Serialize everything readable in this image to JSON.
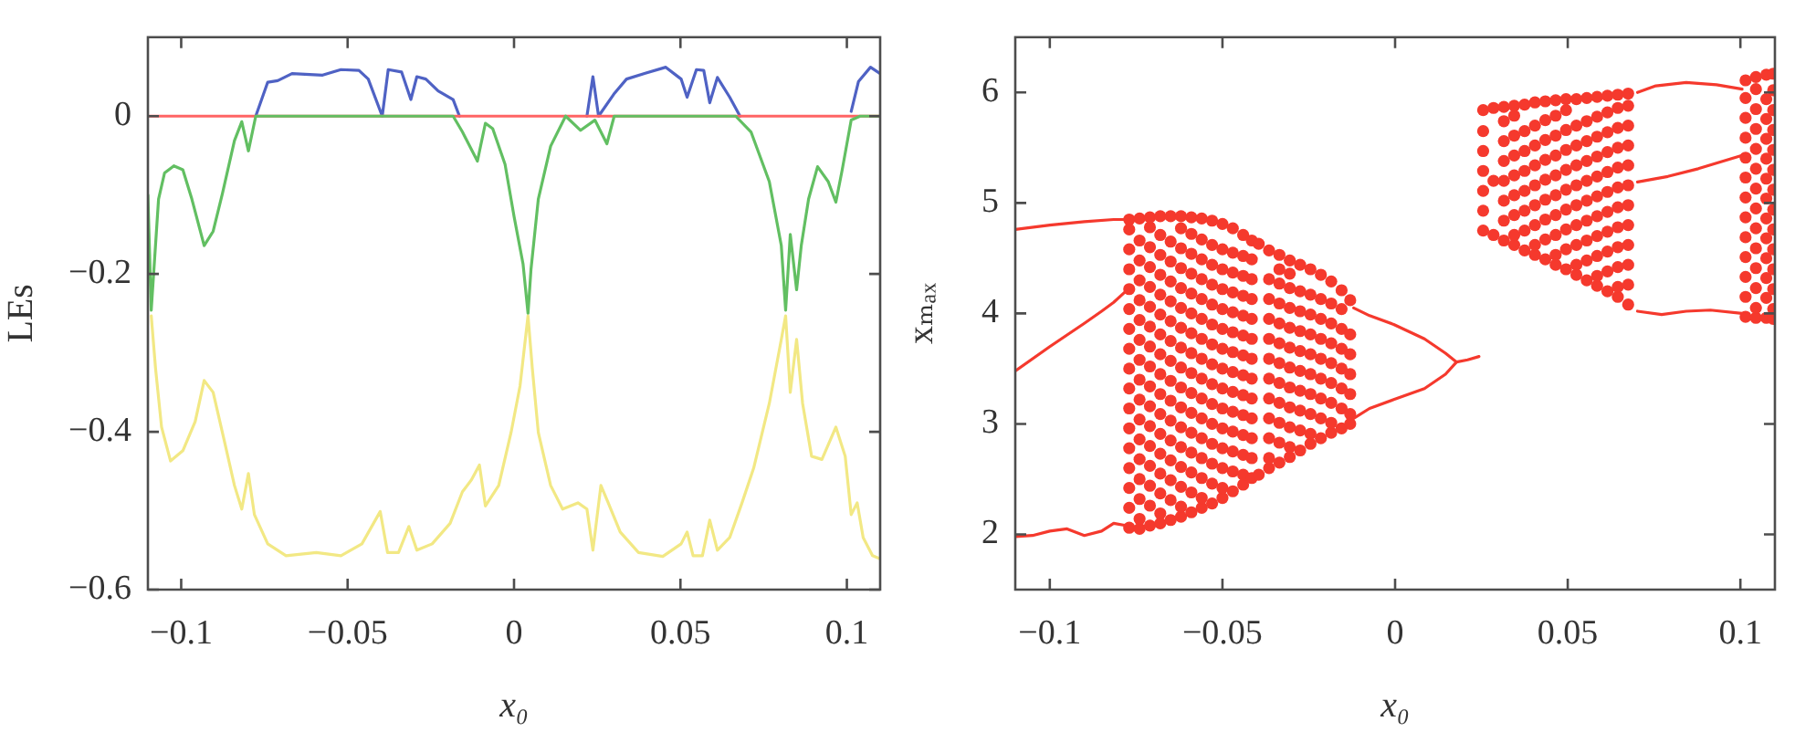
{
  "chart_data": [
    {
      "type": "line",
      "xlabel": "x₀",
      "ylabel": "LEs",
      "xlim": [
        -0.11,
        0.11
      ],
      "ylim": [
        -0.6,
        0.1
      ],
      "xticks": [
        -0.1,
        -0.05,
        0,
        0.05,
        0.1
      ],
      "yticks": [
        -0.6,
        -0.4,
        -0.2,
        0
      ],
      "marker": "none",
      "series": [
        {
          "color": "#4f62c4",
          "x": [
            -0.0776,
            -0.074,
            -0.071,
            -0.0667,
            -0.0575,
            -0.052,
            -0.0466,
            -0.0438,
            -0.0396,
            -0.0378,
            -0.0338,
            -0.031,
            -0.0292,
            -0.0265,
            -0.0228,
            -0.0183,
            -0.0164,
            0,
            0.0219,
            0.0237,
            0.0254,
            0.03,
            0.0338,
            0.0392,
            0.0456,
            0.0502,
            0.052,
            0.0548,
            0.057,
            0.0588,
            0.0611,
            0.0648,
            0.0679,
            0.085,
            0.1013,
            0.1035,
            0.1071,
            0.11
          ],
          "values": [
            0,
            0.043,
            0.045,
            0.054,
            0.052,
            0.059,
            0.058,
            0.047,
            0,
            0.059,
            0.056,
            0.021,
            0.05,
            0.047,
            0.032,
            0.021,
            0,
            null,
            0,
            0.05,
            0,
            0.028,
            0.047,
            0.054,
            0.062,
            0.047,
            0.024,
            0.059,
            0.058,
            0.017,
            0.049,
            0.024,
            0,
            null,
            0.006,
            0.044,
            0.062,
            0.054
          ]
        },
        {
          "color": "#ff6464",
          "x": [
            -0.11,
            0.11
          ],
          "values": [
            0,
            0
          ]
        },
        {
          "color": "#62bf62",
          "x": [
            -0.11,
            -0.109,
            -0.1068,
            -0.105,
            -0.1022,
            -0.0995,
            -0.0968,
            -0.0931,
            -0.0904,
            -0.0876,
            -0.084,
            -0.0818,
            -0.0798,
            -0.0776,
            -0.0183,
            -0.0155,
            -0.011,
            -0.0086,
            -0.0064,
            -0.0027,
            0,
            0.0027,
            0.0042,
            0.0051,
            0.0073,
            0.011,
            0.0155,
            0.02,
            0.0243,
            0.0279,
            0.0301,
            0.0666,
            0.0712,
            0.0767,
            0.0803,
            0.0816,
            0.083,
            0.0849,
            0.0863,
            0.0885,
            0.0912,
            0.0944,
            0.0967,
            0.0986,
            0.1013,
            0.104,
            0.11
          ],
          "values": [
            -0.1,
            -0.246,
            -0.105,
            -0.072,
            -0.063,
            -0.068,
            -0.105,
            -0.164,
            -0.146,
            -0.098,
            -0.031,
            -0.007,
            -0.044,
            0,
            0,
            -0.02,
            -0.057,
            -0.009,
            -0.016,
            -0.061,
            -0.127,
            -0.187,
            -0.25,
            -0.194,
            -0.105,
            -0.038,
            0,
            -0.018,
            -0.005,
            -0.035,
            0,
            0,
            -0.02,
            -0.083,
            -0.164,
            -0.246,
            -0.15,
            -0.22,
            -0.164,
            -0.105,
            -0.064,
            -0.083,
            -0.109,
            -0.068,
            -0.005,
            0,
            0
          ]
        },
        {
          "color": "#f2e884",
          "x": [
            -0.109,
            -0.1077,
            -0.1059,
            -0.1032,
            -0.0995,
            -0.0958,
            -0.0931,
            -0.0904,
            -0.0868,
            -0.084,
            -0.0818,
            -0.0798,
            -0.078,
            -0.074,
            -0.0685,
            -0.0594,
            -0.052,
            -0.0457,
            -0.0402,
            -0.038,
            -0.0347,
            -0.0316,
            -0.0292,
            -0.0246,
            -0.0192,
            -0.0155,
            -0.0128,
            -0.0104,
            -0.0086,
            -0.0046,
            -0.0009,
            0.0018,
            0.0042,
            0.0055,
            0.0073,
            0.011,
            0.0146,
            0.0192,
            0.0219,
            0.0237,
            0.0261,
            0.0283,
            0.0319,
            0.0374,
            0.0447,
            0.0502,
            0.052,
            0.0538,
            0.0566,
            0.0588,
            0.0611,
            0.0648,
            0.0685,
            0.072,
            0.0767,
            0.0803,
            0.0816,
            0.083,
            0.0849,
            0.0867,
            0.0894,
            0.0925,
            0.0967,
            0.0995,
            0.1013,
            0.1031,
            0.1049,
            0.1077,
            0.11
          ],
          "values": [
            -0.253,
            -0.32,
            -0.394,
            -0.437,
            -0.424,
            -0.387,
            -0.335,
            -0.35,
            -0.416,
            -0.468,
            -0.498,
            -0.453,
            -0.505,
            -0.542,
            -0.557,
            -0.553,
            -0.557,
            -0.542,
            -0.501,
            -0.553,
            -0.553,
            -0.52,
            -0.55,
            -0.542,
            -0.516,
            -0.476,
            -0.461,
            -0.442,
            -0.494,
            -0.468,
            -0.401,
            -0.342,
            -0.253,
            -0.32,
            -0.401,
            -0.468,
            -0.498,
            -0.49,
            -0.498,
            -0.55,
            -0.468,
            -0.49,
            -0.527,
            -0.553,
            -0.558,
            -0.542,
            -0.527,
            -0.557,
            -0.557,
            -0.512,
            -0.55,
            -0.534,
            -0.49,
            -0.446,
            -0.364,
            -0.283,
            -0.253,
            -0.35,
            -0.283,
            -0.364,
            -0.431,
            -0.435,
            -0.394,
            -0.431,
            -0.505,
            -0.49,
            -0.534,
            -0.557,
            -0.561
          ]
        }
      ]
    },
    {
      "type": "scatter",
      "xlabel": "x₀",
      "ylabel": "xₘₐₓ",
      "xlim": [
        -0.11,
        0.11
      ],
      "ylim": [
        1.5,
        6.5
      ],
      "xticks": [
        -0.1,
        -0.05,
        0,
        0.05,
        0.1
      ],
      "yticks": [
        2,
        3,
        4,
        5,
        6
      ],
      "marker": "circle",
      "series": [
        {
          "color": "#f5392d",
          "x": [
            -0.077,
            -0.077,
            -0.077,
            -0.077,
            -0.077,
            -0.077,
            -0.077,
            -0.077,
            -0.077,
            -0.077,
            -0.077,
            -0.077,
            -0.077,
            -0.077,
            -0.077,
            -0.077,
            -0.077,
            -0.074,
            -0.074,
            -0.074,
            -0.074,
            -0.074,
            -0.074,
            -0.074,
            -0.074,
            -0.074,
            -0.074,
            -0.074,
            -0.074,
            -0.074,
            -0.074,
            -0.074,
            -0.074,
            -0.074,
            -0.071,
            -0.071,
            -0.071,
            -0.071,
            -0.071,
            -0.071,
            -0.071,
            -0.071,
            -0.071,
            -0.071,
            -0.071,
            -0.071,
            -0.071,
            -0.071,
            -0.071,
            -0.071,
            -0.071,
            -0.068,
            -0.068,
            -0.068,
            -0.068,
            -0.068,
            -0.068,
            -0.068,
            -0.068,
            -0.068,
            -0.068,
            -0.068,
            -0.068,
            -0.068,
            -0.068,
            -0.068,
            -0.068,
            -0.068,
            -0.065,
            -0.065,
            -0.065,
            -0.065,
            -0.065,
            -0.065,
            -0.065,
            -0.065,
            -0.065,
            -0.065,
            -0.065,
            -0.065,
            -0.065,
            -0.065,
            -0.065,
            -0.065,
            -0.062,
            -0.062,
            -0.062,
            -0.062,
            -0.062,
            -0.062,
            -0.062,
            -0.062,
            -0.062,
            -0.062,
            -0.062,
            -0.062,
            -0.062,
            -0.062,
            -0.062,
            -0.062,
            -0.062,
            -0.059,
            -0.059,
            -0.059,
            -0.059,
            -0.059,
            -0.059,
            -0.059,
            -0.059,
            -0.059,
            -0.059,
            -0.059,
            -0.059,
            -0.059,
            -0.059,
            -0.059,
            -0.059,
            -0.056,
            -0.056,
            -0.056,
            -0.056,
            -0.056,
            -0.056,
            -0.056,
            -0.056,
            -0.056,
            -0.056,
            -0.056,
            -0.056,
            -0.056,
            -0.056,
            -0.056,
            -0.056,
            -0.053,
            -0.053,
            -0.053,
            -0.053,
            -0.053,
            -0.053,
            -0.053,
            -0.053,
            -0.053,
            -0.053,
            -0.053,
            -0.053,
            -0.053,
            -0.053,
            -0.053,
            -0.05,
            -0.05,
            -0.05,
            -0.05,
            -0.05,
            -0.05,
            -0.05,
            -0.05,
            -0.05,
            -0.05,
            -0.05,
            -0.05,
            -0.05,
            -0.05,
            -0.05,
            -0.047,
            -0.047,
            -0.047,
            -0.047,
            -0.047,
            -0.047,
            -0.047,
            -0.047,
            -0.047,
            -0.047,
            -0.047,
            -0.047,
            -0.047,
            -0.047,
            -0.044,
            -0.044,
            -0.044,
            -0.044,
            -0.044,
            -0.044,
            -0.044,
            -0.044,
            -0.044,
            -0.044,
            -0.044,
            -0.044,
            -0.044,
            -0.044,
            -0.0415,
            -0.0415,
            -0.0415,
            -0.0415,
            -0.0415,
            -0.0415,
            -0.0415,
            -0.0415,
            -0.0415,
            -0.0415,
            -0.0415,
            -0.0415,
            -0.0415,
            -0.0395,
            -0.0395,
            -0.0365,
            -0.0365,
            -0.0365,
            -0.0365,
            -0.0365,
            -0.0365,
            -0.0365,
            -0.0365,
            -0.0365,
            -0.0365,
            -0.0365,
            -0.0365,
            -0.0335,
            -0.0335,
            -0.0335,
            -0.0335,
            -0.0335,
            -0.0335,
            -0.0335,
            -0.0335,
            -0.0335,
            -0.0335,
            -0.0335,
            -0.0335,
            -0.0305,
            -0.0305,
            -0.0305,
            -0.0305,
            -0.0305,
            -0.0305,
            -0.0305,
            -0.0305,
            -0.0305,
            -0.0305,
            -0.0305,
            -0.0305,
            -0.0275,
            -0.0275,
            -0.0275,
            -0.0275,
            -0.0275,
            -0.0275,
            -0.0275,
            -0.0275,
            -0.0275,
            -0.0275,
            -0.0245,
            -0.0245,
            -0.0245,
            -0.0245,
            -0.0245,
            -0.0245,
            -0.0245,
            -0.0245,
            -0.0245,
            -0.0245,
            -0.0215,
            -0.0215,
            -0.0215,
            -0.0215,
            -0.0215,
            -0.0215,
            -0.0215,
            -0.0215,
            -0.0215,
            -0.0185,
            -0.0185,
            -0.0185,
            -0.0185,
            -0.0185,
            -0.0185,
            -0.0185,
            -0.0185,
            -0.0185,
            -0.0155,
            -0.0155,
            -0.0155,
            -0.0155,
            -0.0155,
            -0.0155,
            -0.0155,
            -0.0155,
            -0.013,
            -0.013,
            -0.013,
            -0.013,
            -0.013,
            -0.013,
            -0.013
          ],
          "values": [
            2.06,
            2.24,
            2.42,
            2.6,
            2.78,
            2.96,
            3.14,
            3.32,
            3.5,
            3.68,
            3.86,
            4.04,
            4.22,
            4.4,
            4.58,
            4.76,
            4.85,
            2.05,
            2.14,
            2.32,
            2.5,
            2.68,
            2.86,
            3.04,
            3.22,
            3.4,
            3.58,
            3.76,
            3.94,
            4.12,
            4.3,
            4.48,
            4.66,
            4.86,
            2.08,
            2.26,
            2.44,
            2.62,
            2.8,
            2.98,
            3.16,
            3.34,
            3.52,
            3.7,
            3.88,
            4.06,
            4.24,
            4.42,
            4.6,
            4.78,
            4.87,
            2.1,
            2.19,
            2.37,
            2.55,
            2.73,
            2.91,
            3.09,
            3.27,
            3.45,
            3.63,
            3.81,
            3.99,
            4.17,
            4.35,
            4.53,
            4.71,
            4.88,
            2.13,
            2.31,
            2.49,
            2.67,
            2.85,
            3.03,
            3.21,
            3.39,
            3.57,
            3.75,
            3.93,
            4.11,
            4.29,
            4.47,
            4.65,
            4.88,
            2.16,
            2.25,
            2.43,
            2.61,
            2.79,
            2.97,
            3.15,
            3.33,
            3.51,
            3.69,
            3.87,
            4.05,
            4.23,
            4.41,
            4.59,
            4.77,
            4.88,
            2.2,
            2.38,
            2.56,
            2.74,
            2.92,
            3.1,
            3.28,
            3.46,
            3.64,
            3.82,
            4,
            4.18,
            4.36,
            4.54,
            4.72,
            4.87,
            2.24,
            2.33,
            2.51,
            2.69,
            2.87,
            3.05,
            3.23,
            3.41,
            3.59,
            3.77,
            3.95,
            4.13,
            4.31,
            4.49,
            4.67,
            4.86,
            2.28,
            2.46,
            2.64,
            2.82,
            3,
            3.18,
            3.36,
            3.54,
            3.72,
            3.9,
            4.08,
            4.26,
            4.44,
            4.62,
            4.84,
            2.33,
            2.42,
            2.6,
            2.78,
            2.96,
            3.14,
            3.32,
            3.5,
            3.68,
            3.86,
            4.04,
            4.22,
            4.4,
            4.58,
            4.81,
            2.39,
            2.57,
            2.75,
            2.93,
            3.11,
            3.29,
            3.47,
            3.65,
            3.83,
            4.01,
            4.19,
            4.37,
            4.55,
            4.77,
            2.45,
            2.54,
            2.72,
            2.9,
            3.08,
            3.26,
            3.44,
            3.62,
            3.8,
            3.98,
            4.16,
            4.34,
            4.52,
            4.71,
            2.51,
            2.69,
            2.87,
            3.05,
            3.23,
            3.41,
            3.59,
            3.77,
            3.95,
            4.13,
            4.31,
            4.49,
            4.66,
            2.54,
            4.63,
            2.6,
            2.69,
            2.87,
            3.05,
            3.23,
            3.41,
            3.59,
            3.77,
            3.95,
            4.13,
            4.31,
            4.57,
            2.65,
            2.83,
            3.01,
            3.19,
            3.37,
            3.55,
            3.73,
            3.91,
            4.09,
            4.27,
            4.4,
            4.53,
            2.7,
            2.79,
            2.97,
            3.15,
            3.33,
            3.51,
            3.69,
            3.87,
            4.05,
            4.23,
            4.36,
            4.48,
            2.76,
            2.94,
            3.12,
            3.3,
            3.48,
            3.66,
            3.84,
            4.02,
            4.2,
            4.44,
            2.82,
            2.91,
            3.09,
            3.27,
            3.45,
            3.63,
            3.81,
            3.99,
            4.17,
            4.4,
            2.87,
            3.05,
            3.23,
            3.41,
            3.59,
            3.77,
            3.95,
            4.13,
            4.35,
            2.92,
            3.01,
            3.19,
            3.37,
            3.55,
            3.73,
            3.91,
            4.09,
            4.29,
            2.96,
            3.14,
            3.32,
            3.5,
            3.68,
            3.86,
            4.04,
            4.21,
            3,
            3.09,
            3.27,
            3.45,
            3.63,
            3.81,
            4.12
          ]
        },
        {
          "color": "#f5392d",
          "x": [
            0.0255,
            0.0255,
            0.0255,
            0.0255,
            0.0255,
            0.0255,
            0.0255,
            0.0285,
            0.0285,
            0.0285,
            0.0315,
            0.0315,
            0.0315,
            0.0315,
            0.0315,
            0.0315,
            0.0315,
            0.0315,
            0.0345,
            0.0345,
            0.0345,
            0.0345,
            0.0345,
            0.0345,
            0.0345,
            0.0345,
            0.0345,
            0.0375,
            0.0375,
            0.0375,
            0.0375,
            0.0375,
            0.0375,
            0.0375,
            0.0375,
            0.0405,
            0.0405,
            0.0405,
            0.0405,
            0.0405,
            0.0405,
            0.0405,
            0.0405,
            0.0405,
            0.0435,
            0.0435,
            0.0435,
            0.0435,
            0.0435,
            0.0435,
            0.0435,
            0.0435,
            0.0435,
            0.0465,
            0.0465,
            0.0465,
            0.0465,
            0.0465,
            0.0465,
            0.0465,
            0.0465,
            0.0465,
            0.0465,
            0.0495,
            0.0495,
            0.0495,
            0.0495,
            0.0495,
            0.0495,
            0.0495,
            0.0495,
            0.0495,
            0.0495,
            0.0525,
            0.0525,
            0.0525,
            0.0525,
            0.0525,
            0.0525,
            0.0525,
            0.0525,
            0.0525,
            0.0525,
            0.0555,
            0.0555,
            0.0555,
            0.0555,
            0.0555,
            0.0555,
            0.0555,
            0.0555,
            0.0555,
            0.0555,
            0.0585,
            0.0585,
            0.0585,
            0.0585,
            0.0585,
            0.0585,
            0.0585,
            0.0585,
            0.0585,
            0.0585,
            0.0585,
            0.0615,
            0.0615,
            0.0615,
            0.0615,
            0.0615,
            0.0615,
            0.0615,
            0.0615,
            0.0615,
            0.0615,
            0.0615,
            0.0645,
            0.0645,
            0.0645,
            0.0645,
            0.0645,
            0.0645,
            0.0645,
            0.0645,
            0.0645,
            0.0645,
            0.0645,
            0.0645,
            0.0675,
            0.0675,
            0.0675,
            0.0675,
            0.0675,
            0.0675,
            0.0675,
            0.0675,
            0.0675,
            0.0675,
            0.0675,
            0.0675,
            0.1015,
            0.1015,
            0.1015,
            0.1015,
            0.1015,
            0.1015,
            0.1015,
            0.1015,
            0.1015,
            0.1015,
            0.1015,
            0.1015,
            0.1015,
            0.1045,
            0.1045,
            0.1045,
            0.1045,
            0.1045,
            0.1045,
            0.1045,
            0.1045,
            0.1045,
            0.1045,
            0.1045,
            0.1045,
            0.1045,
            0.1045,
            0.1075,
            0.1075,
            0.1075,
            0.1075,
            0.1075,
            0.1075,
            0.1075,
            0.1075,
            0.1075,
            0.1075,
            0.1075,
            0.1075,
            0.1075,
            0.1095,
            0.1095,
            0.1095,
            0.1095,
            0.1095,
            0.1095,
            0.1095,
            0.1095,
            0.1095,
            0.1095,
            0.1095,
            0.1095,
            0.1095,
            0.1095
          ],
          "values": [
            4.75,
            4.93,
            5.11,
            5.29,
            5.47,
            5.65,
            5.84,
            4.71,
            5.2,
            5.86,
            4.66,
            4.84,
            5.02,
            5.2,
            5.38,
            5.56,
            5.74,
            5.87,
            4.62,
            4.71,
            4.89,
            5.07,
            5.25,
            5.43,
            5.61,
            5.79,
            5.88,
            4.57,
            4.75,
            4.93,
            5.11,
            5.29,
            5.47,
            5.65,
            5.89,
            4.53,
            4.62,
            4.8,
            4.98,
            5.16,
            5.34,
            5.52,
            5.7,
            5.91,
            4.49,
            4.67,
            4.85,
            5.03,
            5.21,
            5.39,
            5.57,
            5.75,
            5.92,
            4.44,
            4.53,
            4.71,
            4.89,
            5.07,
            5.25,
            5.43,
            5.61,
            5.79,
            5.93,
            4.4,
            4.58,
            4.76,
            4.94,
            5.12,
            5.3,
            5.48,
            5.66,
            5.84,
            5.94,
            4.35,
            4.44,
            4.62,
            4.8,
            4.98,
            5.16,
            5.34,
            5.52,
            5.7,
            5.94,
            4.3,
            4.48,
            4.66,
            4.84,
            5.02,
            5.2,
            5.38,
            5.56,
            5.74,
            5.95,
            4.25,
            4.34,
            4.52,
            4.7,
            4.88,
            5.06,
            5.24,
            5.42,
            5.6,
            5.78,
            5.96,
            4.2,
            4.38,
            4.56,
            4.74,
            4.92,
            5.1,
            5.28,
            5.46,
            5.64,
            5.82,
            5.97,
            4.15,
            4.24,
            4.42,
            4.6,
            4.78,
            4.96,
            5.14,
            5.32,
            5.5,
            5.68,
            5.86,
            5.98,
            4.08,
            4.26,
            4.44,
            4.62,
            4.8,
            4.98,
            5.16,
            5.34,
            5.52,
            5.7,
            5.88,
            5.99,
            3.97,
            4.15,
            4.33,
            4.51,
            4.69,
            4.87,
            5.05,
            5.23,
            5.41,
            5.59,
            5.77,
            5.95,
            6.11,
            3.96,
            4.05,
            4.23,
            4.41,
            4.59,
            4.77,
            4.95,
            5.13,
            5.31,
            5.49,
            5.67,
            5.85,
            6.03,
            6.14,
            3.96,
            4.14,
            4.32,
            4.5,
            4.68,
            4.86,
            5.04,
            5.22,
            5.4,
            5.58,
            5.76,
            5.94,
            6.16,
            3.95,
            4.04,
            4.22,
            4.4,
            4.58,
            4.76,
            4.94,
            5.12,
            5.3,
            5.48,
            5.66,
            5.84,
            6.02,
            6.17
          ]
        },
        {
          "type": "line",
          "marker": "none",
          "color": "#f5392d",
          "x": [
            -0.11,
            -0.1,
            -0.09,
            -0.0815,
            -0.077
          ],
          "values": [
            4.76,
            4.8,
            4.83,
            4.85,
            4.85
          ]
        },
        {
          "type": "line",
          "marker": "none",
          "color": "#f5392d",
          "x": [
            -0.11,
            -0.1,
            -0.09,
            -0.085,
            -0.0815,
            -0.078
          ],
          "values": [
            3.48,
            3.7,
            3.91,
            4.02,
            4.1,
            4.2
          ]
        },
        {
          "type": "line",
          "marker": "none",
          "color": "#f5392d",
          "x": [
            -0.11,
            -0.105,
            -0.1,
            -0.095,
            -0.09,
            -0.085,
            -0.0815,
            -0.078
          ],
          "values": [
            1.98,
            1.99,
            2.03,
            2.05,
            1.99,
            2.03,
            2.1,
            2.08
          ]
        },
        {
          "type": "line",
          "marker": "none",
          "color": "#f5392d",
          "x": [
            -0.012,
            -0.0074,
            -0.0004,
            0.0085,
            0.0146,
            0.0178,
            0.021,
            0.0243
          ],
          "values": [
            4.05,
            3.98,
            3.9,
            3.77,
            3.64,
            3.56,
            3.58,
            3.61
          ]
        },
        {
          "type": "line",
          "marker": "none",
          "color": "#f5392d",
          "x": [
            -0.012,
            -0.0074,
            -0.0004,
            0.0085,
            0.0146,
            0.0178
          ],
          "values": [
            3.05,
            3.14,
            3.22,
            3.32,
            3.45,
            3.56
          ]
        },
        {
          "type": "line",
          "marker": "none",
          "color": "#f5392d",
          "x": [
            0.0702,
            0.0755,
            0.0843,
            0.0931,
            0.1005
          ],
          "values": [
            6,
            6.06,
            6.09,
            6.07,
            6.03
          ]
        },
        {
          "type": "line",
          "marker": "none",
          "color": "#f5392d",
          "x": [
            0.0702,
            0.079,
            0.0878,
            0.1005
          ],
          "values": [
            5.19,
            5.24,
            5.31,
            5.43
          ]
        },
        {
          "type": "line",
          "marker": "none",
          "color": "#f5392d",
          "x": [
            0.0702,
            0.0772,
            0.0843,
            0.0913,
            0.1005
          ],
          "values": [
            4.02,
            3.99,
            4.02,
            4.03,
            4
          ]
        }
      ]
    }
  ]
}
